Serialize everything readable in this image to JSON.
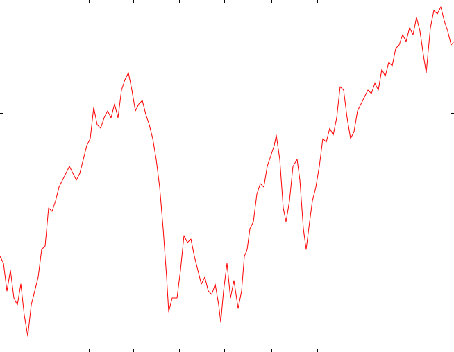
{
  "chart_data": {
    "type": "line",
    "color": "#ff0000",
    "xlim": [
      0,
      654
    ],
    "ylim": [
      0,
      508
    ],
    "xticks": [
      63,
      128,
      192,
      258,
      323,
      391,
      457,
      524,
      593
    ],
    "yticks": [
      168,
      345
    ],
    "x": [
      0,
      5,
      10,
      15,
      20,
      25,
      30,
      35,
      40,
      45,
      50,
      55,
      60,
      65,
      70,
      75,
      80,
      85,
      90,
      95,
      100,
      105,
      110,
      115,
      120,
      125,
      130,
      135,
      140,
      145,
      150,
      155,
      160,
      165,
      170,
      175,
      180,
      185,
      190,
      195,
      200,
      205,
      210,
      215,
      220,
      225,
      230,
      235,
      240,
      243,
      248,
      255,
      260,
      265,
      270,
      275,
      280,
      285,
      290,
      295,
      300,
      305,
      310,
      315,
      318,
      322,
      327,
      332,
      337,
      343,
      348,
      352,
      356,
      360,
      365,
      370,
      375,
      380,
      385,
      390,
      395,
      398,
      403,
      408,
      412,
      417,
      422,
      428,
      432,
      437,
      441,
      446,
      450,
      455,
      460,
      465,
      470,
      475,
      480,
      485,
      490,
      495,
      500,
      505,
      510,
      515,
      520,
      525,
      530,
      535,
      540,
      545,
      550,
      555,
      560,
      565,
      570,
      575,
      580,
      585,
      590,
      595,
      600,
      605,
      610,
      614,
      620,
      625,
      630,
      635,
      640,
      645,
      650,
      654
    ],
    "values": [
      138,
      128,
      88,
      118,
      78,
      68,
      98,
      53,
      23,
      68,
      88,
      108,
      148,
      153,
      208,
      203,
      218,
      238,
      248,
      258,
      268,
      258,
      248,
      258,
      278,
      298,
      308,
      353,
      328,
      323,
      338,
      348,
      338,
      358,
      338,
      378,
      393,
      403,
      378,
      348,
      358,
      363,
      343,
      328,
      308,
      278,
      238,
      178,
      108,
      58,
      78,
      78,
      118,
      168,
      158,
      163,
      138,
      118,
      98,
      108,
      88,
      83,
      98,
      68,
      43,
      88,
      128,
      78,
      103,
      63,
      88,
      138,
      148,
      178,
      188,
      228,
      243,
      238,
      268,
      283,
      298,
      313,
      278,
      208,
      188,
      218,
      268,
      278,
      248,
      178,
      148,
      188,
      218,
      238,
      268,
      308,
      303,
      323,
      313,
      338,
      383,
      378,
      338,
      308,
      318,
      348,
      358,
      368,
      378,
      373,
      388,
      378,
      408,
      398,
      418,
      413,
      438,
      443,
      458,
      448,
      468,
      458,
      483,
      463,
      428,
      403,
      468,
      493,
      488,
      498,
      478,
      463,
      443,
      448
    ]
  }
}
